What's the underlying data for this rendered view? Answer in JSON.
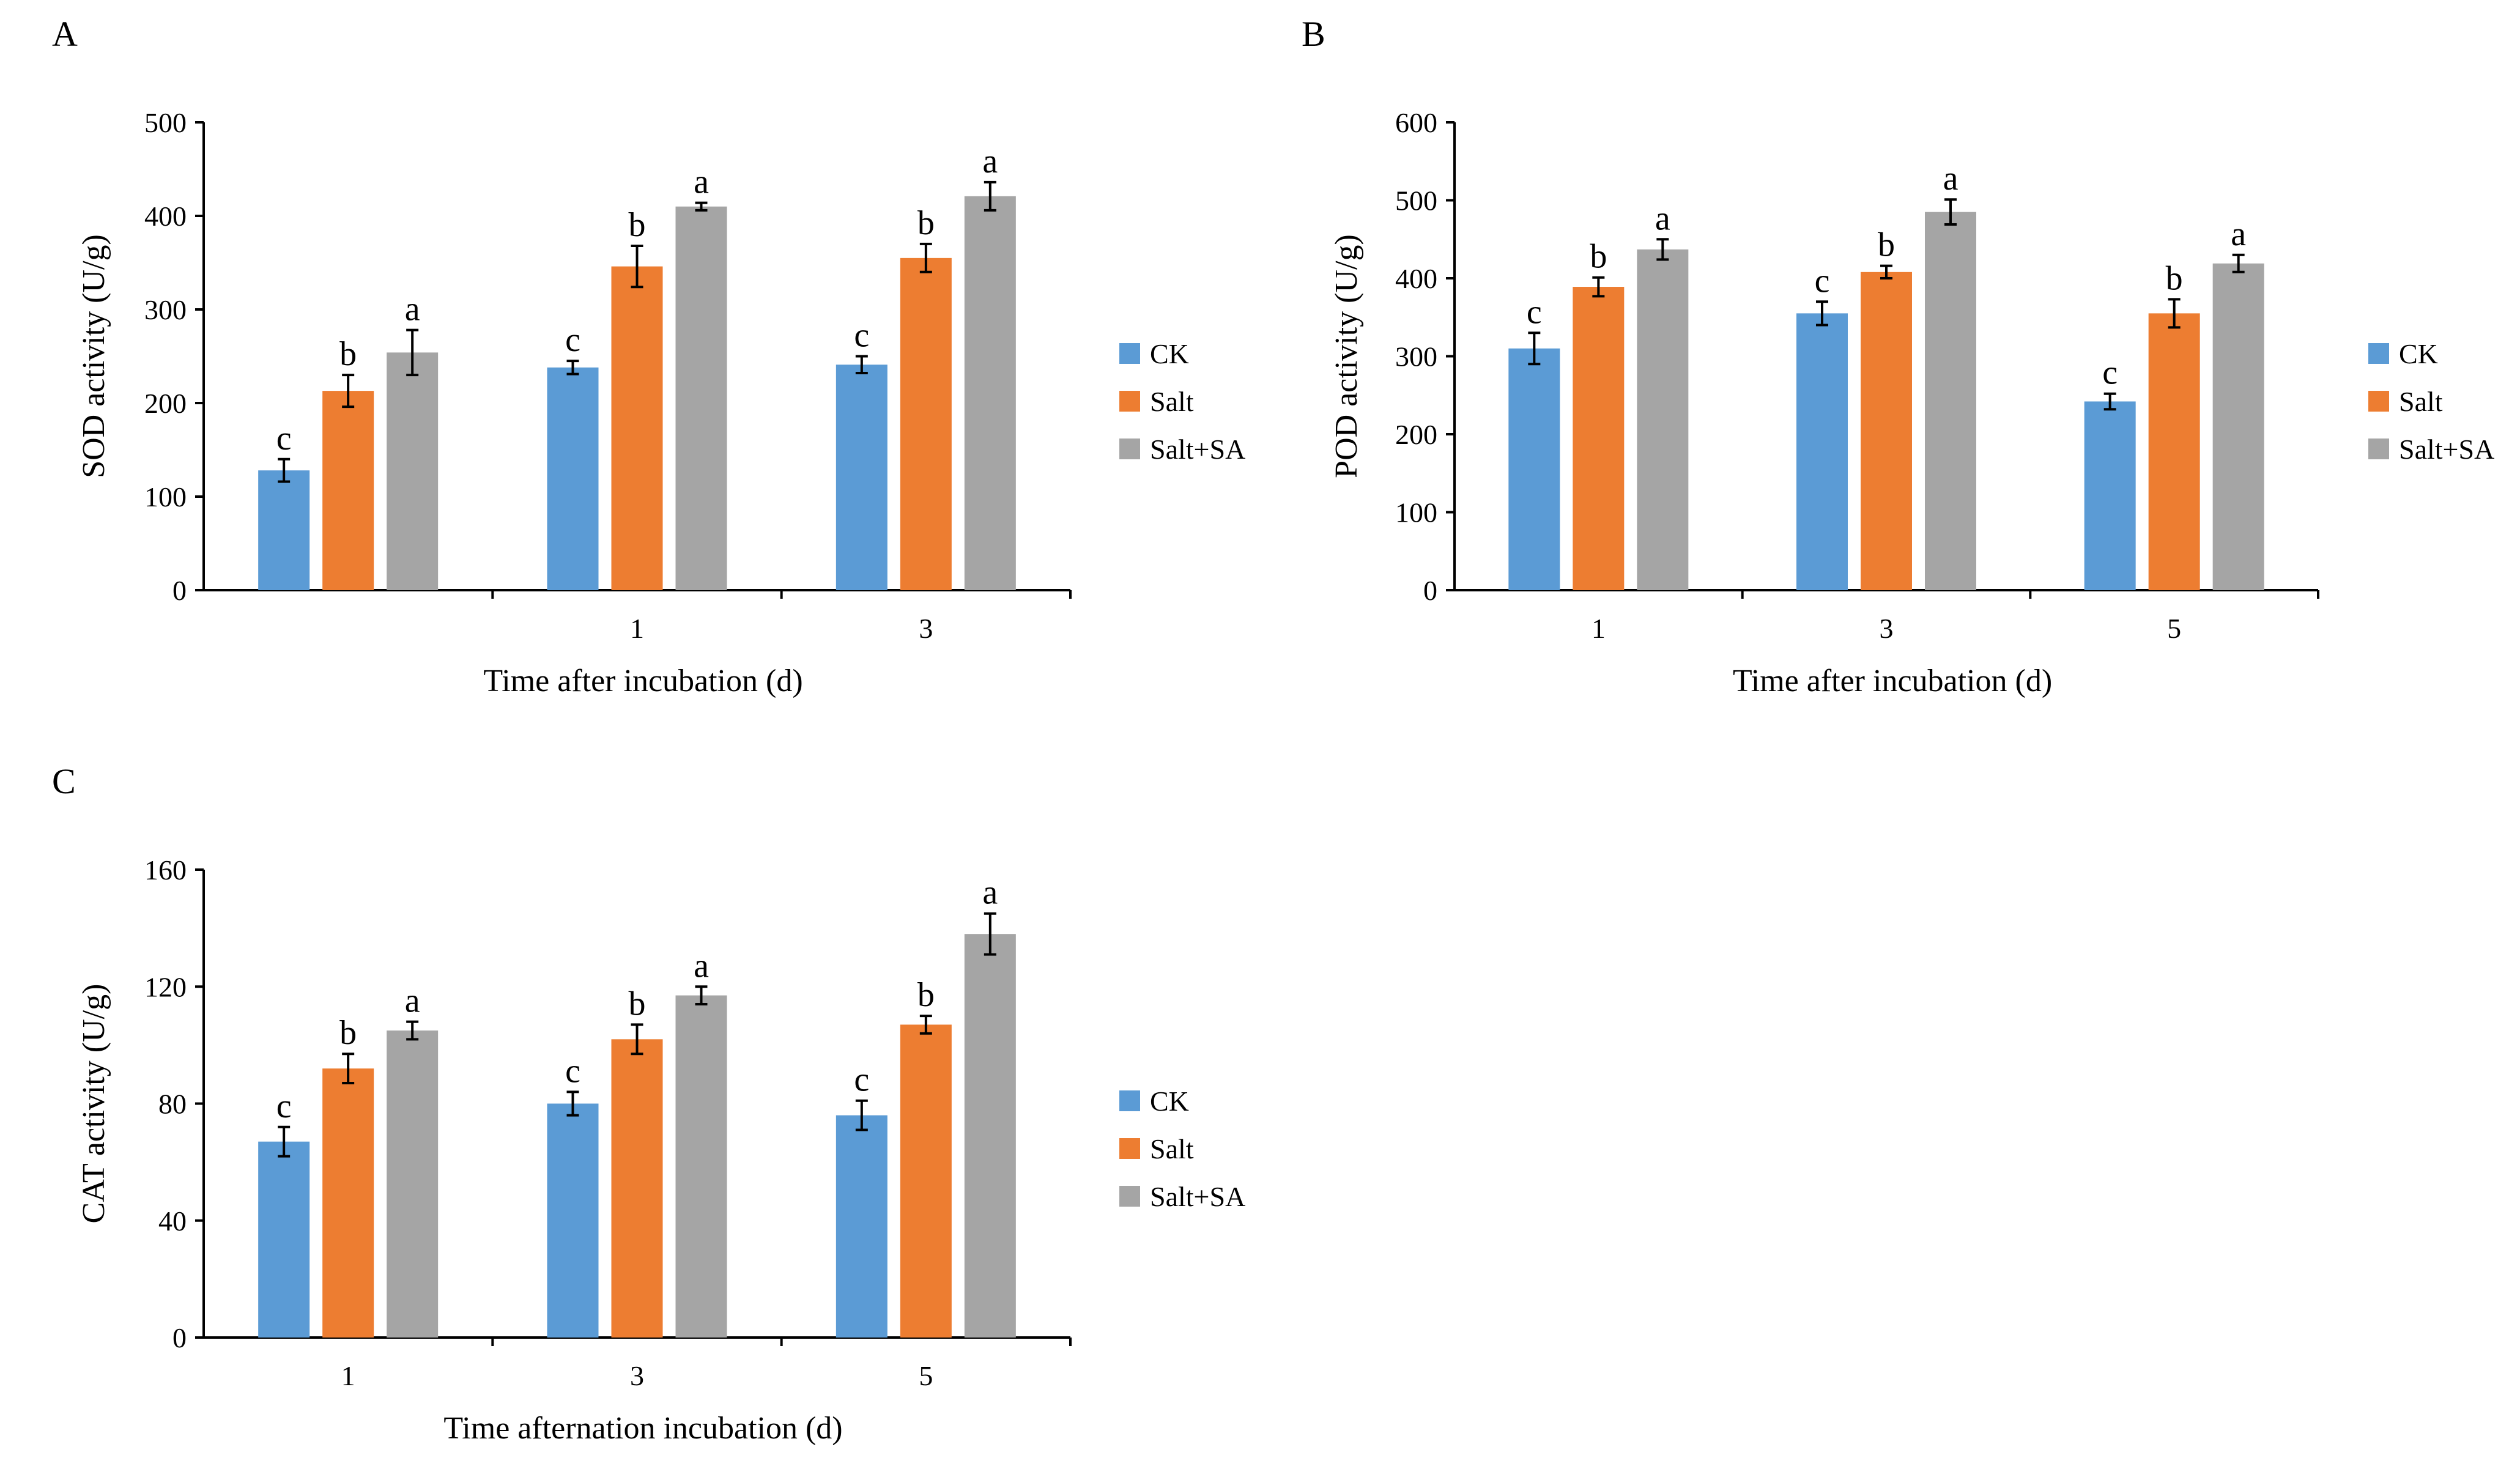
{
  "chart_data": [
    {
      "panel": "A",
      "type": "bar",
      "categories": [
        "",
        "1",
        "3"
      ],
      "series": [
        {
          "name": "CK",
          "values": [
            128,
            238,
            241
          ],
          "errors": [
            12,
            7,
            9
          ],
          "letters": [
            "c",
            "c",
            "c"
          ]
        },
        {
          "name": "Salt",
          "values": [
            213,
            346,
            355
          ],
          "errors": [
            17,
            22,
            15
          ],
          "letters": [
            "b",
            "b",
            "b"
          ]
        },
        {
          "name": "Salt+SA",
          "values": [
            254,
            410,
            421
          ],
          "errors": [
            24,
            4,
            15
          ],
          "letters": [
            "a",
            "a",
            "a"
          ]
        }
      ],
      "xlabel": "Time after incubation (d)",
      "ylabel": "SOD activity (U/g)",
      "ylim": [
        0,
        500
      ],
      "yticks": [
        "0",
        "100",
        "200",
        "300",
        "400",
        "500"
      ],
      "legend": "right"
    },
    {
      "panel": "B",
      "type": "bar",
      "categories": [
        "1",
        "3",
        "5"
      ],
      "series": [
        {
          "name": "CK",
          "values": [
            310,
            355,
            242
          ],
          "errors": [
            20,
            15,
            10
          ],
          "letters": [
            "c",
            "c",
            "c"
          ]
        },
        {
          "name": "Salt",
          "values": [
            389,
            408,
            355
          ],
          "errors": [
            12,
            8,
            18
          ],
          "letters": [
            "b",
            "b",
            "b"
          ]
        },
        {
          "name": "Salt+SA",
          "values": [
            437,
            485,
            419
          ],
          "errors": [
            13,
            16,
            11
          ],
          "letters": [
            "a",
            "a",
            "a"
          ]
        }
      ],
      "xlabel": "Time after incubation (d)",
      "ylabel": "POD activity (U/g)",
      "ylim": [
        0,
        600
      ],
      "yticks": [
        "0",
        "100",
        "200",
        "300",
        "400",
        "500",
        "600"
      ],
      "legend": "right"
    },
    {
      "panel": "C",
      "type": "bar",
      "categories": [
        "1",
        "3",
        "5"
      ],
      "series": [
        {
          "name": "CK",
          "values": [
            67,
            80,
            76
          ],
          "errors": [
            5,
            4,
            5
          ],
          "letters": [
            "c",
            "c",
            "c"
          ]
        },
        {
          "name": "Salt",
          "values": [
            92,
            102,
            107
          ],
          "errors": [
            5,
            5,
            3
          ],
          "letters": [
            "b",
            "b",
            "b"
          ]
        },
        {
          "name": "Salt+SA",
          "values": [
            105,
            117,
            138
          ],
          "errors": [
            3,
            3,
            7
          ],
          "letters": [
            "a",
            "a",
            "a"
          ]
        }
      ],
      "xlabel": "Time afternation incubation (d)",
      "ylabel": "CAT activity (U/g)",
      "ylim": [
        0,
        160
      ],
      "yticks": [
        "0",
        "40",
        "80",
        "120",
        "160"
      ],
      "legend": "right"
    }
  ],
  "colors": {
    "CK": "#5B9BD5",
    "Salt": "#ED7D31",
    "Salt+SA": "#A5A5A5"
  }
}
